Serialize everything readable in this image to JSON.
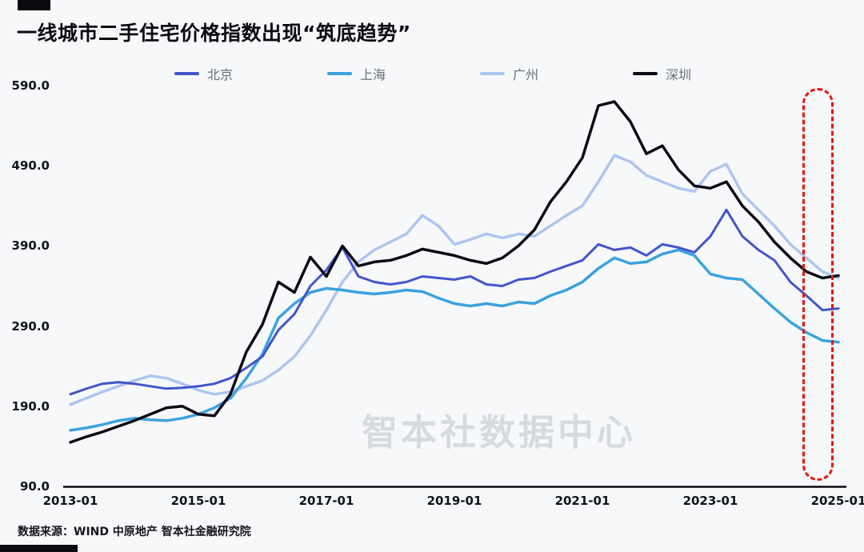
{
  "watermark": "智本社数据中心",
  "footer": {
    "source": "数据来源：WIND 中原地产 智本社金融研究院"
  },
  "accent": {
    "highlight_red": "#e9140f",
    "background": "#f7f8fa"
  },
  "chart_data": {
    "type": "line",
    "title": "一线城市二手住宅价格指数出现“筑底趋势”",
    "legend_position": "top",
    "grid": false,
    "ylim": [
      90,
      590
    ],
    "y_ticks": [
      590,
      490,
      390,
      290,
      190,
      90
    ],
    "y_tick_labels": [
      "590.0",
      "490.0",
      "390.0",
      "290.0",
      "190.0",
      "90.0"
    ],
    "x_label_ticks": [
      "2013-01",
      "2015-01",
      "2017-01",
      "2019-01",
      "2021-01",
      "2023-01",
      "2025-01"
    ],
    "months_span": 144,
    "sample_interval_months": 3,
    "x": [
      "2013-01",
      "2013-04",
      "2013-07",
      "2013-10",
      "2014-01",
      "2014-04",
      "2014-07",
      "2014-10",
      "2015-01",
      "2015-04",
      "2015-07",
      "2015-10",
      "2016-01",
      "2016-04",
      "2016-07",
      "2016-10",
      "2017-01",
      "2017-04",
      "2017-07",
      "2017-10",
      "2018-01",
      "2018-04",
      "2018-07",
      "2018-10",
      "2019-01",
      "2019-04",
      "2019-07",
      "2019-10",
      "2020-01",
      "2020-04",
      "2020-07",
      "2020-10",
      "2021-01",
      "2021-04",
      "2021-07",
      "2021-10",
      "2022-01",
      "2022-04",
      "2022-07",
      "2022-10",
      "2023-01",
      "2023-04",
      "2023-07",
      "2023-10",
      "2024-01",
      "2024-04",
      "2024-07",
      "2024-10",
      "2025-01"
    ],
    "series": [
      {
        "id": "beijing",
        "name": "北京",
        "color": "#4355cb",
        "width": 3,
        "values": [
          205,
          212,
          218,
          220,
          218,
          215,
          212,
          213,
          215,
          218,
          225,
          238,
          252,
          285,
          305,
          340,
          360,
          388,
          352,
          345,
          342,
          345,
          352,
          350,
          348,
          352,
          342,
          340,
          348,
          350,
          358,
          365,
          372,
          392,
          385,
          388,
          378,
          392,
          388,
          382,
          402,
          435,
          402,
          385,
          372,
          345,
          328,
          310,
          312
        ]
      },
      {
        "id": "shanghai",
        "name": "上海",
        "color": "#3da2de",
        "width": 3.5,
        "values": [
          160,
          163,
          167,
          172,
          175,
          173,
          172,
          175,
          180,
          188,
          200,
          225,
          255,
          300,
          318,
          332,
          337,
          335,
          332,
          330,
          332,
          335,
          333,
          325,
          318,
          315,
          318,
          315,
          320,
          318,
          328,
          335,
          345,
          362,
          375,
          368,
          370,
          380,
          385,
          378,
          355,
          350,
          348,
          330,
          312,
          295,
          282,
          272,
          270
        ]
      },
      {
        "id": "guangzhou",
        "name": "广州",
        "color": "#adc6f0",
        "width": 3.5,
        "values": [
          192,
          200,
          208,
          215,
          222,
          228,
          225,
          218,
          210,
          205,
          208,
          215,
          222,
          235,
          252,
          278,
          310,
          345,
          370,
          385,
          395,
          405,
          428,
          415,
          392,
          398,
          405,
          400,
          405,
          402,
          415,
          428,
          440,
          470,
          503,
          495,
          478,
          470,
          462,
          458,
          483,
          492,
          455,
          435,
          415,
          392,
          375,
          358,
          350
        ]
      },
      {
        "id": "shenzhen",
        "name": "深圳",
        "color": "#0b0b14",
        "width": 3.5,
        "values": [
          145,
          152,
          158,
          165,
          172,
          180,
          188,
          190,
          180,
          178,
          205,
          258,
          292,
          345,
          332,
          376,
          352,
          390,
          365,
          370,
          372,
          378,
          386,
          382,
          378,
          372,
          368,
          375,
          390,
          410,
          445,
          470,
          500,
          565,
          570,
          545,
          505,
          515,
          485,
          465,
          462,
          470,
          440,
          420,
          395,
          375,
          358,
          350,
          353
        ]
      }
    ],
    "annotations": [
      {
        "type": "box",
        "style": "dashed",
        "color": "#e9140f",
        "x_range": [
          "2024-08",
          "2025-01"
        ],
        "note": "bottoming trend highlight"
      }
    ]
  }
}
